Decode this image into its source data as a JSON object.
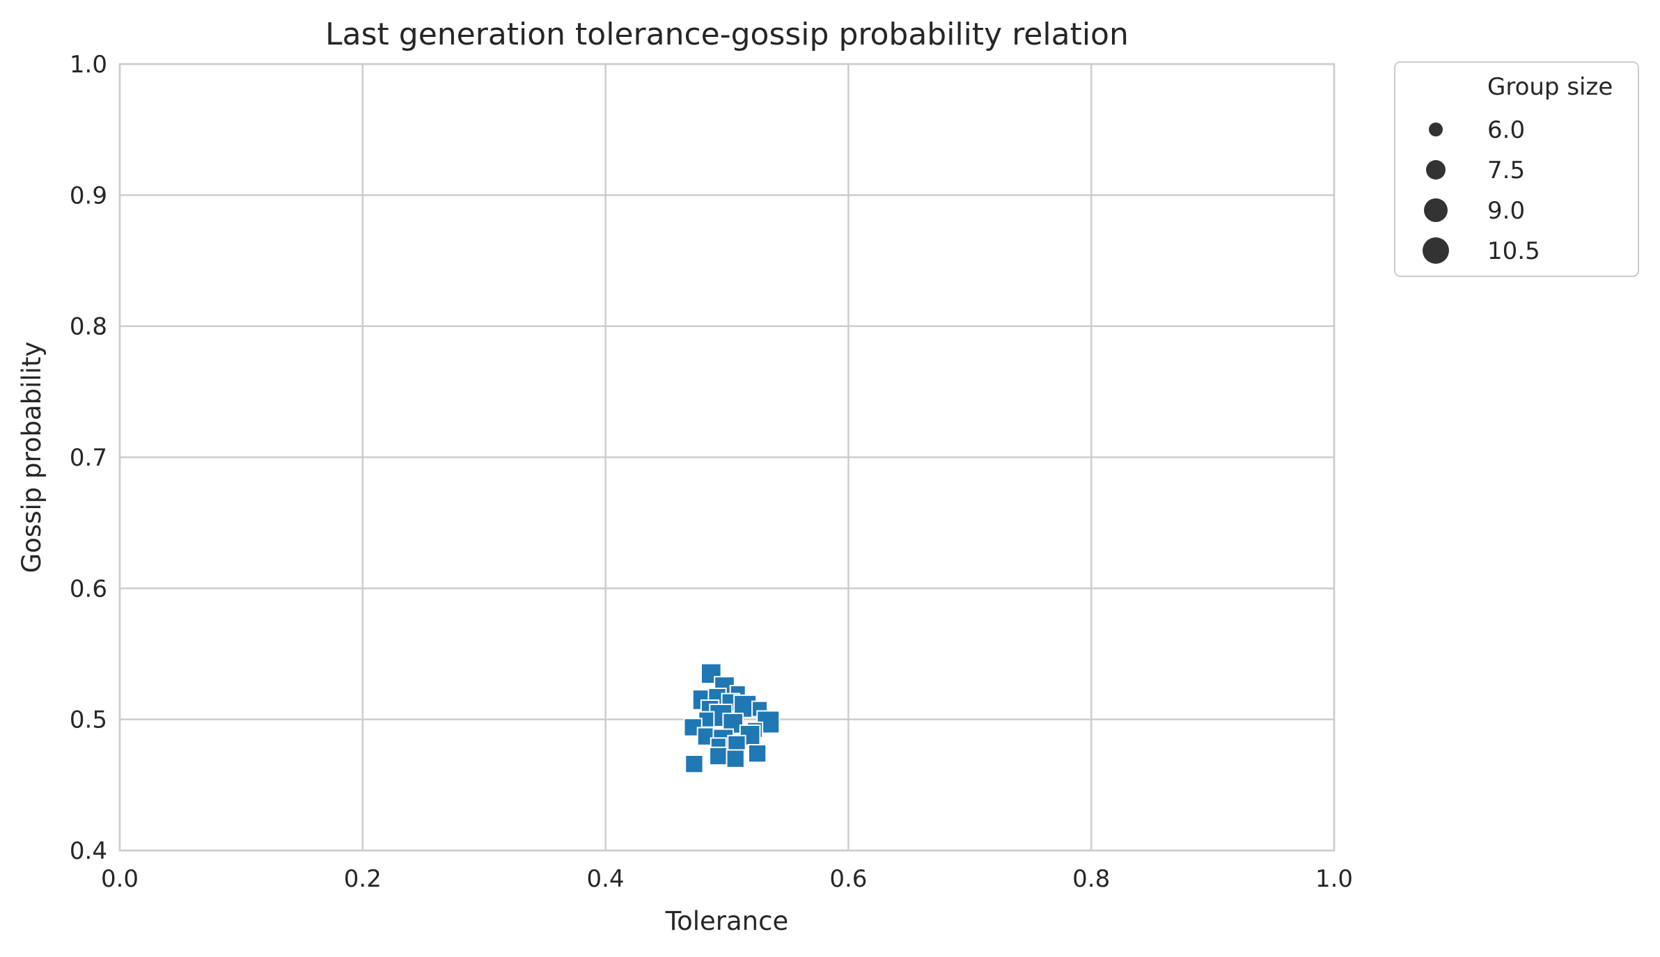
{
  "chart_data": {
    "type": "scatter",
    "title": "Last generation tolerance-gossip probability relation",
    "xlabel": "Tolerance",
    "ylabel": "Gossip probability",
    "xlim": [
      0.0,
      1.0
    ],
    "ylim": [
      0.4,
      1.0
    ],
    "xticks": [
      "0.0",
      "0.2",
      "0.4",
      "0.6",
      "0.8",
      "1.0"
    ],
    "yticks": [
      "0.4",
      "0.5",
      "0.6",
      "0.7",
      "0.8",
      "0.9",
      "1.0"
    ],
    "grid": true,
    "marker": "square",
    "color": "#1f77b4",
    "legend": {
      "title": "Group size",
      "placement": "outside-top-right",
      "entries": [
        "6.0",
        "7.5",
        "9.0",
        "10.5"
      ],
      "marker_color": "#333333"
    },
    "points": [
      {
        "x": 0.487,
        "y": 0.535,
        "size": 9.0
      },
      {
        "x": 0.498,
        "y": 0.525,
        "size": 9.0
      },
      {
        "x": 0.509,
        "y": 0.52,
        "size": 6.0
      },
      {
        "x": 0.48,
        "y": 0.515,
        "size": 9.0
      },
      {
        "x": 0.492,
        "y": 0.517,
        "size": 7.5
      },
      {
        "x": 0.503,
        "y": 0.513,
        "size": 7.5
      },
      {
        "x": 0.515,
        "y": 0.51,
        "size": 10.5
      },
      {
        "x": 0.527,
        "y": 0.508,
        "size": 6.0
      },
      {
        "x": 0.486,
        "y": 0.508,
        "size": 7.5
      },
      {
        "x": 0.495,
        "y": 0.503,
        "size": 10.5
      },
      {
        "x": 0.483,
        "y": 0.5,
        "size": 6.0
      },
      {
        "x": 0.505,
        "y": 0.497,
        "size": 9.0
      },
      {
        "x": 0.534,
        "y": 0.498,
        "size": 10.5
      },
      {
        "x": 0.472,
        "y": 0.494,
        "size": 7.5
      },
      {
        "x": 0.523,
        "y": 0.492,
        "size": 6.0
      },
      {
        "x": 0.519,
        "y": 0.488,
        "size": 9.0
      },
      {
        "x": 0.483,
        "y": 0.487,
        "size": 7.5
      },
      {
        "x": 0.497,
        "y": 0.485,
        "size": 9.0
      },
      {
        "x": 0.508,
        "y": 0.481,
        "size": 7.5
      },
      {
        "x": 0.493,
        "y": 0.48,
        "size": 6.0
      },
      {
        "x": 0.525,
        "y": 0.474,
        "size": 7.5
      },
      {
        "x": 0.493,
        "y": 0.472,
        "size": 7.5
      },
      {
        "x": 0.507,
        "y": 0.47,
        "size": 7.5
      },
      {
        "x": 0.473,
        "y": 0.466,
        "size": 7.5
      }
    ]
  }
}
